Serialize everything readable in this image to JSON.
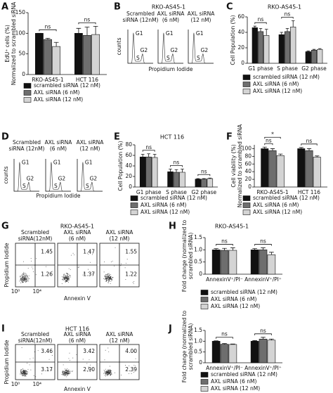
{
  "chart_data": [
    {
      "type": "bar",
      "letter": "A",
      "y_label": [
        "EdU⁺ cells (%)",
        "Normalized to scrambled siRNA"
      ],
      "categories": [
        "RKO-AS45-1",
        "HCT 116"
      ],
      "series": [
        {
          "name": "scrambled siRNA (12 nM)",
          "color": "#111111",
          "values": [
            100,
            100
          ],
          "errors": [
            0,
            12
          ]
        },
        {
          "name": "AXL siRNA (6 nM)",
          "color": "#6e6e6e",
          "values": [
            85,
            95
          ],
          "errors": [
            3,
            20
          ]
        },
        {
          "name": "AXL siRNA (12 nM)",
          "color": "#d4d4d4",
          "values": [
            68,
            97
          ],
          "errors": [
            10,
            20
          ]
        }
      ],
      "ylim": [
        0,
        150
      ],
      "yticks": [
        0,
        50,
        100,
        150
      ],
      "annotations": [
        {
          "text": "ns"
        },
        {
          "text": "ns"
        }
      ]
    },
    {
      "type": "bar",
      "letter": "C",
      "title": "RKO-AS45-1",
      "y_label": [
        "Cell Population (%)"
      ],
      "categories": [
        "G1 phase",
        "S phase",
        "G2 phase"
      ],
      "series": [
        {
          "name": "scrambled siRNA (12 nM)",
          "color": "#111111",
          "values": [
            46,
            37,
            15
          ],
          "errors": [
            2,
            3,
            1
          ]
        },
        {
          "name": "AXL siRNA (6 nM)",
          "color": "#6e6e6e",
          "values": [
            41,
            41,
            17
          ],
          "errors": [
            4,
            4,
            1
          ]
        },
        {
          "name": "AXL siRNA (12 nM)",
          "color": "#d4d4d4",
          "values": [
            36,
            47,
            18
          ],
          "errors": [
            8,
            8,
            1
          ]
        }
      ],
      "ylim": [
        0,
        60
      ],
      "yticks": [
        0,
        20,
        40,
        60
      ],
      "annotations": [
        {
          "text": "ns"
        },
        {
          "text": "ns"
        }
      ]
    },
    {
      "type": "bar",
      "letter": "E",
      "title": "HCT 116",
      "y_label": [
        "Cell Population (%)"
      ],
      "categories": [
        "G1 phase",
        "S phase",
        "G2 phase"
      ],
      "series": [
        {
          "name": "scrambled siRNA (12 nM)",
          "color": "#111111",
          "values": [
            57,
            29,
            15
          ],
          "errors": [
            5,
            5,
            1
          ]
        },
        {
          "name": "AXL siRNA (6 nM)",
          "color": "#6e6e6e",
          "values": [
            57,
            28,
            15
          ],
          "errors": [
            6,
            5,
            1
          ]
        },
        {
          "name": "AXL siRNA (12 nM)",
          "color": "#d4d4d4",
          "values": [
            56,
            28,
            16
          ],
          "errors": [
            6,
            6,
            1
          ]
        }
      ],
      "ylim": [
        0,
        80
      ],
      "yticks": [
        0,
        20,
        40,
        60,
        80
      ],
      "annotations": [
        {
          "text": "ns"
        },
        {
          "text": "ns"
        },
        {
          "text": "ns"
        }
      ]
    },
    {
      "type": "bar",
      "letter": "F",
      "y_label": [
        "Cell viability (%)",
        "Normalized to scrambled siRNA"
      ],
      "categories": [
        "RKO-AS45-1",
        "HCT 116"
      ],
      "series": [
        {
          "name": "scrambled siRNA (12 nM)",
          "color": "#111111",
          "values": [
            100,
            100
          ],
          "errors": [
            4,
            3
          ]
        },
        {
          "name": "AXL siRNA (6 nM)",
          "color": "#6e6e6e",
          "values": [
            95,
            95
          ],
          "errors": [
            5,
            5
          ]
        },
        {
          "name": "AXL siRNA (12 nM)",
          "color": "#d4d4d4",
          "values": [
            82,
            78
          ],
          "errors": [
            4,
            3
          ]
        }
      ],
      "ylim": [
        0,
        110
      ],
      "yticks": [
        0,
        20,
        40,
        60,
        80,
        100
      ],
      "annotations": [
        {
          "text": "*"
        },
        {
          "text": "ns"
        },
        {
          "text": "ns"
        }
      ]
    },
    {
      "type": "bar",
      "letter": "H",
      "title": "RKO-AS45-1",
      "y_label": [
        "Fold change (normalized to",
        "scrambled siRNA)"
      ],
      "categories": [
        "AnnexinV⁺/PI⁻",
        "AnnexinV⁺/PI⁺"
      ],
      "series": [
        {
          "name": "scrambled siRNA (12 nM)",
          "color": "#111111",
          "values": [
            1.0,
            1.0
          ],
          "errors": [
            0.05,
            0.05
          ]
        },
        {
          "name": "AXL siRNA (6 nM)",
          "color": "#6e6e6e",
          "values": [
            0.98,
            1.0
          ],
          "errors": [
            0.08,
            0.08
          ]
        },
        {
          "name": "AXL siRNA (12 nM)",
          "color": "#d4d4d4",
          "values": [
            0.98,
            0.8
          ],
          "errors": [
            0.1,
            0.1
          ]
        }
      ],
      "ylim": [
        0,
        1.5
      ],
      "yticks": [
        0,
        0.5,
        {
          "value": 1,
          "label": "1.0"
        },
        1.5
      ],
      "annotations": [
        {
          "text": "ns"
        },
        {
          "text": "ns"
        }
      ]
    },
    {
      "type": "bar",
      "letter": "J",
      "y_label": [
        "Fold change (normalized to",
        "scrambled siRNA)"
      ],
      "categories": [
        "AnnexinV⁺/PI⁻",
        "AnnexinV⁺/PI⁺"
      ],
      "series": [
        {
          "name": "scrambled siRNA (12 nM)",
          "color": "#111111",
          "values": [
            1.0,
            1.0
          ],
          "errors": [
            0.02,
            0.03
          ]
        },
        {
          "name": "AXL siRNA (6 nM)",
          "color": "#6e6e6e",
          "values": [
            0.86,
            1.1
          ],
          "errors": [
            0.03,
            0.08
          ]
        },
        {
          "name": "AXL siRNA (12 nM)",
          "color": "#d4d4d4",
          "values": [
            0.85,
            1.05
          ],
          "errors": [
            0.02,
            0.05
          ]
        }
      ],
      "ylim": [
        0,
        1.5
      ],
      "yticks": [
        0,
        0.5,
        {
          "value": 1,
          "label": "1.0"
        },
        1.5
      ],
      "annotations": [
        {
          "text": "ns"
        },
        {
          "text": "ns"
        }
      ]
    }
  ],
  "flow_panels": [
    {
      "kind": "histogram",
      "letter": "B",
      "title": "RKO-AS45-1",
      "y_label": "counts",
      "x_label": "Propidium Iodide",
      "samples": [
        {
          "label": [
            "Scrambled",
            "siRNA (12nM)"
          ],
          "peaks": [
            "G1",
            "S",
            "G2"
          ]
        },
        {
          "label": [
            "AXL siRNA",
            "(6 nM)"
          ],
          "peaks": [
            "G1",
            "S",
            "G2"
          ]
        },
        {
          "label": [
            "AXL siRNA",
            "(12 nM)"
          ],
          "peaks": [
            "G1",
            "S",
            "G2"
          ]
        }
      ]
    },
    {
      "kind": "histogram",
      "letter": "D",
      "y_label": "counts",
      "x_label": "Propidium Iodide",
      "samples": [
        {
          "label": [
            "Scrambled",
            "siRNA (12nM)"
          ],
          "peaks": [
            "G1",
            "S",
            "G2"
          ]
        },
        {
          "label": [
            "AXL siRNA",
            "(6 nM)"
          ],
          "peaks": [
            "G1",
            "S",
            "G2"
          ]
        },
        {
          "label": [
            "AXL siRNA",
            "(12 nM)"
          ],
          "peaks": [
            "G1",
            "S",
            "G2"
          ]
        }
      ]
    },
    {
      "kind": "dotplot",
      "letter": "G",
      "title": "RKO-AS45-1",
      "y_label": "Propidium Iodide",
      "x_label": "Annexin V",
      "x_ticks": [
        "10⁰",
        "10⁴"
      ],
      "samples": [
        {
          "label": [
            "Scrambled",
            "siRNA(12nM)"
          ],
          "upper": "1.45",
          "lower": "1.26"
        },
        {
          "label": [
            "AXL siRNA",
            "(6 nM)"
          ],
          "upper": "1.47",
          "lower": "1.37"
        },
        {
          "label": [
            "AXL siRNA",
            "(12 nM)"
          ],
          "upper": "1.55",
          "lower": "1.22"
        }
      ]
    },
    {
      "kind": "dotplot",
      "letter": "I",
      "title": "HCT 116",
      "y_label": "Propidium Iodide",
      "x_label": "Annexin V",
      "x_ticks": [
        "10⁰",
        "10⁴"
      ],
      "samples": [
        {
          "label": [
            "Scrambled",
            "siRNA(12nM)"
          ],
          "upper": "3.46",
          "lower": "3.17"
        },
        {
          "label": [
            "AXL siRNA",
            "(6 nM)"
          ],
          "upper": "3.42",
          "lower": "2.90"
        },
        {
          "label": [
            "AXL siRNA",
            "(12 nM)"
          ],
          "upper": "4.00",
          "lower": "2.39"
        }
      ]
    }
  ]
}
